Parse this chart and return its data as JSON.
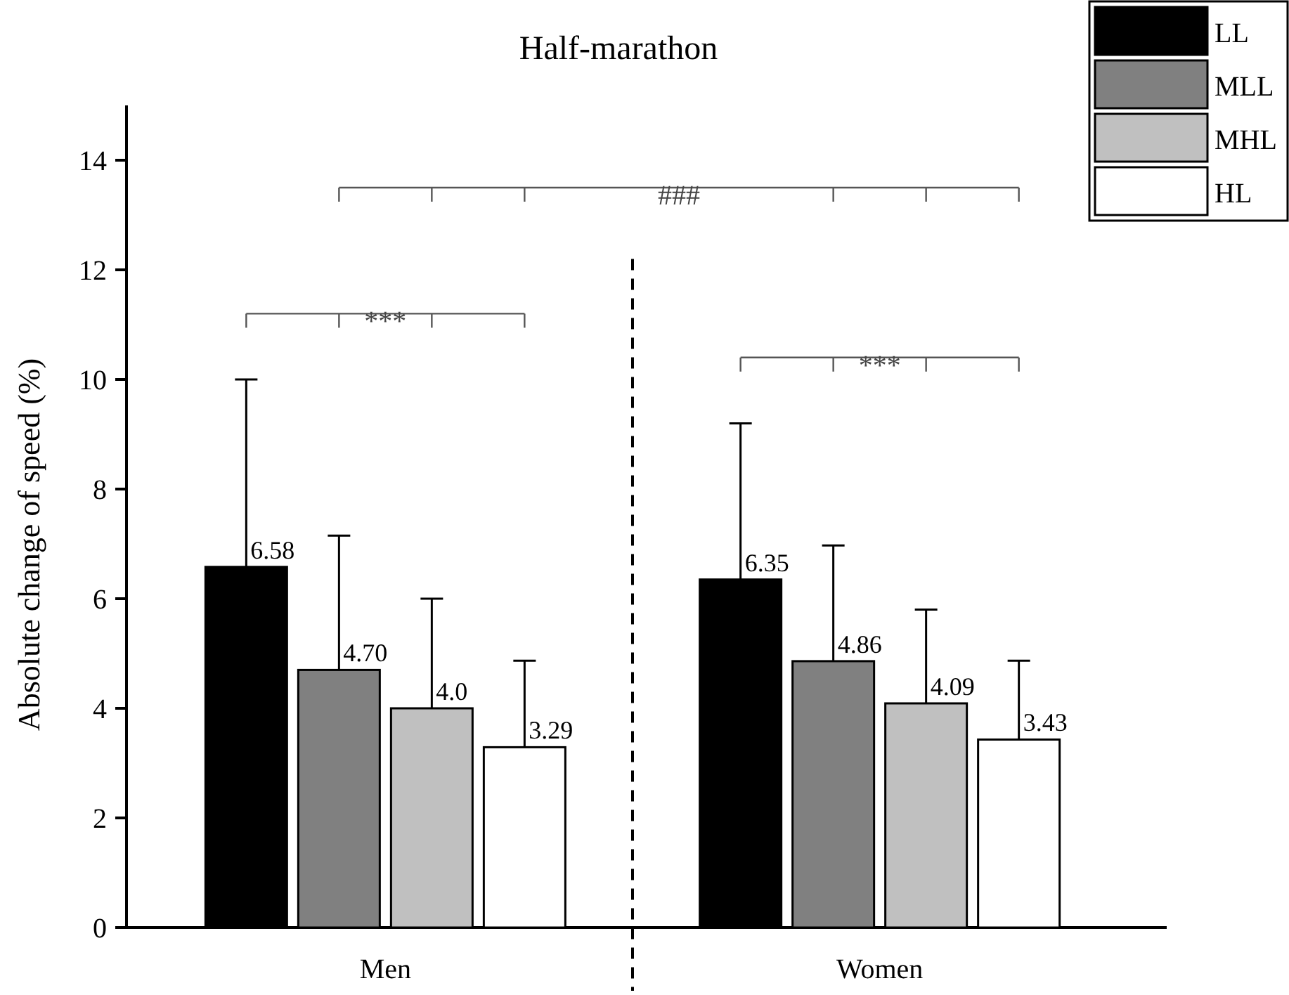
{
  "chart_data": {
    "type": "bar",
    "title": "Half-marathon",
    "ylabel": "Absolute change of speed (%)",
    "categories": [
      "Men",
      "Women"
    ],
    "series": [
      {
        "name": "LL",
        "color": "#000000",
        "values": [
          6.58,
          6.35
        ],
        "errors": [
          3.42,
          2.85
        ],
        "value_labels": [
          "6.58",
          "6.35"
        ]
      },
      {
        "name": "MLL",
        "color": "#808080",
        "values": [
          4.7,
          4.86
        ],
        "errors": [
          2.45,
          2.11
        ],
        "value_labels": [
          "4.70",
          "4.86"
        ]
      },
      {
        "name": "MHL",
        "color": "#c0c0c0",
        "values": [
          4.0,
          4.09
        ],
        "errors": [
          2.0,
          1.71
        ],
        "value_labels": [
          "4.0",
          "4.09"
        ]
      },
      {
        "name": "HL",
        "color": "#ffffff",
        "values": [
          3.29,
          3.43
        ],
        "errors": [
          1.58,
          1.44
        ],
        "value_labels": [
          "3.29",
          "3.43"
        ]
      }
    ],
    "ylim": [
      0,
      15
    ],
    "yticks": [
      0,
      2,
      4,
      6,
      8,
      10,
      12,
      14
    ],
    "grid": false,
    "legend": "top right",
    "annotations": [
      "***",
      "***",
      "###"
    ]
  }
}
